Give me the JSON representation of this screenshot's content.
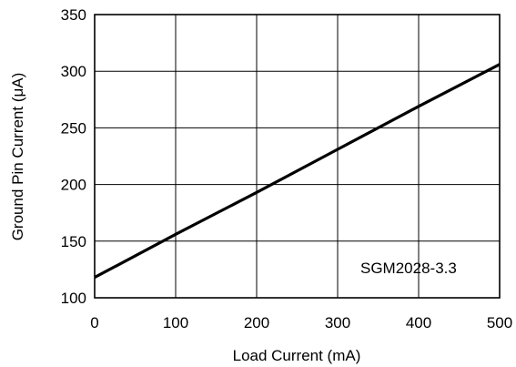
{
  "chart_data": {
    "type": "line",
    "title": "",
    "xlabel": "Load Current (mA)",
    "ylabel": "Ground Pin Current (μA)",
    "xlim": [
      0,
      500
    ],
    "ylim": [
      100,
      350
    ],
    "xticks": [
      0,
      100,
      200,
      300,
      400,
      500
    ],
    "yticks": [
      100,
      150,
      200,
      250,
      300,
      350
    ],
    "grid": true,
    "annotation": "SGM2028-3.3",
    "series": [
      {
        "x": [
          0,
          100,
          200,
          300,
          400,
          500
        ],
        "y": [
          118,
          156,
          193,
          231,
          269,
          306
        ]
      }
    ]
  }
}
